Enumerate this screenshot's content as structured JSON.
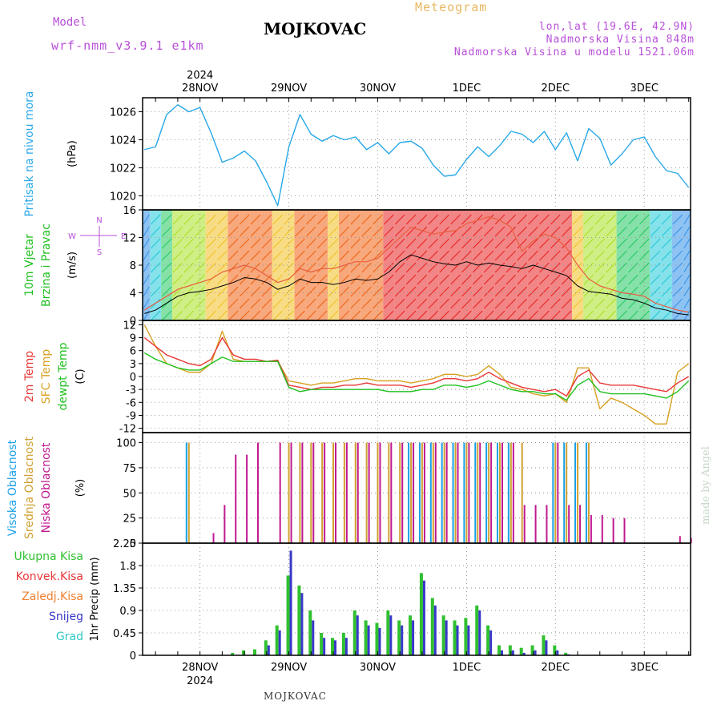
{
  "header": {
    "model_label": "Model",
    "model_name": "wrf-nmm_v3.9.1 e1km",
    "station": "MOJKOVAC",
    "product": "Meteogram",
    "coords": "lon,lat (19.6E, 42.9N)",
    "elevation": "Nadmorska Visina 848m",
    "model_elevation": "Nadmorska Visina u modelu 1521.06m",
    "footer_station": "MOJKOVAC",
    "watermark": "made by Angel"
  },
  "time_axis": {
    "year": "2024",
    "day_labels": [
      "28NOV",
      "29NOV",
      "30NOV",
      "1DEC",
      "2DEC",
      "3DEC"
    ],
    "range_hours": [
      -15.5,
      132.5
    ]
  },
  "colors": {
    "pressure": "#28a8e8",
    "temp2m": "#e83838",
    "sfc": "#d8a020",
    "dewpt": "#20c020",
    "high_cloud": "#18a0e8",
    "mid_cloud": "#d0a030",
    "low_cloud": "#c01890",
    "total_precip": "#30c030",
    "conv_precip": "#e83838",
    "freezing": "#f08030",
    "snow": "#3838c8",
    "graupel": "#30c8c8"
  },
  "chart_data": [
    {
      "type": "line",
      "panel": "pressure",
      "ylabel_main": "Pritisak na nivou mora",
      "unit": "(hPa)",
      "ylim": [
        1019,
        1027
      ],
      "yticks": [
        1020,
        1022,
        1024,
        1026
      ],
      "grid": true,
      "x_hours": [
        -15,
        -12,
        -9,
        -6,
        -3,
        0,
        3,
        6,
        9,
        12,
        15,
        18,
        21,
        24,
        27,
        30,
        33,
        36,
        39,
        42,
        45,
        48,
        51,
        54,
        57,
        60,
        63,
        66,
        69,
        72,
        75,
        78,
        81,
        84,
        87,
        90,
        93,
        96,
        99,
        102,
        105,
        108,
        111,
        114,
        117,
        120,
        123,
        126,
        129,
        132
      ],
      "values": [
        1023.3,
        1023.5,
        1025.8,
        1026.5,
        1026.0,
        1026.3,
        1024.5,
        1022.4,
        1022.7,
        1023.2,
        1022.5,
        1021.0,
        1019.3,
        1023.5,
        1025.8,
        1024.4,
        1023.9,
        1024.3,
        1024.0,
        1024.2,
        1023.3,
        1023.8,
        1023.0,
        1023.8,
        1023.9,
        1023.4,
        1022.2,
        1021.4,
        1021.5,
        1022.6,
        1023.5,
        1022.8,
        1023.6,
        1024.6,
        1024.4,
        1023.8,
        1024.6,
        1023.3,
        1024.5,
        1022.5,
        1024.8,
        1024.1,
        1022.2,
        1023.0,
        1024.0,
        1024.2,
        1022.8,
        1021.8,
        1021.6,
        1020.6
      ]
    },
    {
      "type": "line",
      "panel": "wind",
      "ylabel_main": "10m Vjetar",
      "ylabel_sub": "Brzina i Pravac",
      "unit": "(m/s)",
      "compass": {
        "n": "N",
        "s": "S",
        "w": "W",
        "e": "E"
      },
      "ylim": [
        0,
        16
      ],
      "yticks": [
        0,
        4,
        8,
        12,
        16
      ],
      "grid": true,
      "x_hours": [
        -15,
        -12,
        -9,
        -6,
        -3,
        0,
        3,
        6,
        9,
        12,
        15,
        18,
        21,
        24,
        27,
        30,
        33,
        36,
        39,
        42,
        45,
        48,
        51,
        54,
        57,
        60,
        63,
        66,
        69,
        72,
        75,
        78,
        81,
        84,
        87,
        90,
        93,
        96,
        99,
        102,
        105,
        108,
        111,
        114,
        117,
        120,
        123,
        126,
        129,
        132
      ],
      "series": [
        {
          "role": "speed",
          "values": [
            1.0,
            1.5,
            2.5,
            3.5,
            4.0,
            4.2,
            4.5,
            5.0,
            5.5,
            6.2,
            6.0,
            5.5,
            4.5,
            5.0,
            6.0,
            5.5,
            5.5,
            5.2,
            5.5,
            6.0,
            5.8,
            6.0,
            7.0,
            8.5,
            9.5,
            9.0,
            8.5,
            8.2,
            8.0,
            8.5,
            8.0,
            8.3,
            8.0,
            7.8,
            7.5,
            8.0,
            7.5,
            7.0,
            6.5,
            5.0,
            4.2,
            4.0,
            3.8,
            3.2,
            3.0,
            2.5,
            1.8,
            1.5,
            1.0,
            0.8
          ]
        },
        {
          "role": "gust",
          "values": [
            1.5,
            2.5,
            3.5,
            4.5,
            5.0,
            5.5,
            6.0,
            7.0,
            7.5,
            8.0,
            7.5,
            6.5,
            5.5,
            6.0,
            7.5,
            7.0,
            7.5,
            7.5,
            8.0,
            8.5,
            8.5,
            9.0,
            10.5,
            12.0,
            13.5,
            13.0,
            12.5,
            12.8,
            13.0,
            14.0,
            14.5,
            15.0,
            14.5,
            13.5,
            10.0,
            11.5,
            12.5,
            12.0,
            10.5,
            8.0,
            6.0,
            5.0,
            4.5,
            4.0,
            3.8,
            3.5,
            2.5,
            2.0,
            1.5,
            1.2
          ]
        }
      ]
    },
    {
      "type": "line",
      "panel": "temperature",
      "ylabels": [
        "2m Temp",
        "SFC Temp",
        "dewpt Temp"
      ],
      "unit": "(C)",
      "ylim": [
        -13,
        13
      ],
      "yticks": [
        -12,
        -9,
        -6,
        -3,
        0,
        3,
        6,
        9,
        12
      ],
      "grid": true,
      "x_hours": [
        -15,
        -12,
        -9,
        -6,
        -3,
        0,
        3,
        6,
        9,
        12,
        15,
        18,
        21,
        24,
        27,
        30,
        33,
        36,
        39,
        42,
        45,
        48,
        51,
        54,
        57,
        60,
        63,
        66,
        69,
        72,
        75,
        78,
        81,
        84,
        87,
        90,
        93,
        96,
        99,
        102,
        105,
        108,
        111,
        114,
        117,
        120,
        123,
        126,
        129,
        132
      ],
      "series": [
        {
          "name": "2m Temp",
          "values": [
            9.0,
            7.0,
            5.0,
            4.0,
            3.0,
            2.5,
            4.0,
            9.0,
            5.0,
            4.0,
            4.0,
            3.5,
            3.8,
            -2.0,
            -2.5,
            -3.0,
            -2.5,
            -2.5,
            -2.0,
            -2.0,
            -1.5,
            -2.0,
            -2.0,
            -2.0,
            -2.5,
            -2.0,
            -1.5,
            -0.5,
            -0.5,
            -1.0,
            -0.5,
            1.0,
            -0.5,
            -1.5,
            -2.5,
            -3.0,
            -3.5,
            -3.0,
            -4.5,
            0.0,
            1.5,
            -1.5,
            -2.0,
            -2.0,
            -2.0,
            -2.5,
            -3.0,
            -3.5,
            -1.5,
            0.0
          ]
        },
        {
          "name": "SFC Temp",
          "values": [
            12.0,
            7.0,
            3.0,
            2.0,
            1.0,
            1.0,
            3.0,
            10.5,
            4.0,
            3.5,
            3.5,
            3.5,
            3.5,
            -1.0,
            -1.5,
            -2.0,
            -1.5,
            -1.5,
            -1.0,
            -0.5,
            -0.5,
            -1.0,
            -1.0,
            -1.0,
            -1.5,
            -1.0,
            -0.5,
            0.5,
            0.5,
            0.0,
            0.5,
            2.5,
            0.5,
            -2.5,
            -3.0,
            -4.0,
            -4.5,
            -4.0,
            -6.0,
            2.0,
            2.0,
            -7.5,
            -5.0,
            -6.0,
            -7.5,
            -9.0,
            -11.0,
            -11.0,
            1.0,
            3.0
          ]
        },
        {
          "name": "dewpt Temp",
          "values": [
            5.5,
            4.0,
            3.0,
            2.0,
            1.5,
            1.5,
            3.0,
            4.5,
            3.5,
            3.5,
            3.5,
            3.5,
            3.5,
            -2.5,
            -3.5,
            -3.0,
            -3.0,
            -3.0,
            -3.0,
            -3.0,
            -3.0,
            -3.0,
            -3.5,
            -3.5,
            -3.5,
            -3.0,
            -3.0,
            -2.0,
            -2.0,
            -2.5,
            -2.0,
            -1.0,
            -2.0,
            -3.0,
            -3.5,
            -3.5,
            -4.0,
            -4.0,
            -5.5,
            -2.0,
            -0.5,
            -3.5,
            -4.0,
            -4.0,
            -4.0,
            -4.0,
            -4.5,
            -5.0,
            -3.5,
            -1.0
          ]
        }
      ]
    },
    {
      "type": "bar",
      "panel": "clouds",
      "ylabels": [
        "Visoka Oblacnost",
        "Srednja Oblacnost",
        "Niska Oblacnost"
      ],
      "unit": "(%)",
      "ylim": [
        0,
        110
      ],
      "yticks": [
        0,
        25,
        50,
        75,
        100
      ],
      "grid": true,
      "x_hours": [
        -15,
        -12,
        -9,
        -6,
        -3,
        0,
        3,
        6,
        9,
        12,
        15,
        18,
        21,
        24,
        27,
        30,
        33,
        36,
        39,
        42,
        45,
        48,
        51,
        54,
        57,
        60,
        63,
        66,
        69,
        72,
        75,
        78,
        81,
        84,
        87,
        90,
        93,
        96,
        99,
        102,
        105,
        108,
        111,
        114,
        117,
        120,
        123,
        126,
        129,
        132
      ],
      "series": [
        {
          "name": "Visoka Oblacnost",
          "values": [
            0,
            0,
            0,
            0,
            100,
            0,
            0,
            0,
            0,
            0,
            0,
            0,
            0,
            0,
            0,
            0,
            0,
            0,
            0,
            0,
            0,
            0,
            0,
            0,
            100,
            100,
            100,
            100,
            100,
            100,
            100,
            100,
            100,
            100,
            0,
            0,
            0,
            100,
            100,
            100,
            100,
            0,
            0,
            0,
            0,
            0,
            0,
            0,
            0,
            0
          ]
        },
        {
          "name": "Srednja Oblacnost",
          "values": [
            0,
            0,
            0,
            0,
            100,
            0,
            0,
            0,
            0,
            0,
            0,
            0,
            0,
            100,
            100,
            100,
            100,
            100,
            100,
            100,
            100,
            100,
            100,
            100,
            100,
            100,
            100,
            100,
            100,
            100,
            100,
            100,
            100,
            100,
            100,
            0,
            0,
            100,
            100,
            100,
            100,
            0,
            0,
            0,
            0,
            0,
            0,
            0,
            0,
            0
          ]
        },
        {
          "name": "Niska Oblacnost",
          "values": [
            0,
            0,
            0,
            0,
            0,
            0,
            10,
            38,
            88,
            88,
            100,
            0,
            100,
            100,
            100,
            100,
            100,
            100,
            100,
            100,
            100,
            100,
            100,
            100,
            100,
            100,
            100,
            100,
            100,
            100,
            100,
            100,
            100,
            100,
            38,
            38,
            38,
            100,
            38,
            38,
            28,
            28,
            25,
            25,
            0,
            0,
            0,
            0,
            7,
            5
          ]
        }
      ]
    },
    {
      "type": "bar",
      "panel": "precip",
      "legend": [
        "Ukupna Kisa",
        "Konvek.Kisa",
        "Zaledj.Kisa",
        "Snijeg",
        "Grad"
      ],
      "ylabel": "1hr Precip (mm)",
      "ylim": [
        0,
        2.25
      ],
      "yticks": [
        0,
        0.45,
        0.9,
        1.35,
        1.8,
        2.25
      ],
      "ytick_labels": [
        "0",
        "0.45",
        "0.9",
        "1.35",
        "1.8",
        "2.25"
      ],
      "grid": true,
      "x_hours": [
        -15,
        -12,
        -9,
        -6,
        -3,
        0,
        3,
        6,
        9,
        12,
        15,
        18,
        21,
        24,
        27,
        30,
        33,
        36,
        39,
        42,
        45,
        48,
        51,
        54,
        57,
        60,
        63,
        66,
        69,
        72,
        75,
        78,
        81,
        84,
        87,
        90,
        93,
        96,
        99,
        102,
        105,
        108,
        111,
        114,
        117,
        120,
        123,
        126,
        129,
        132
      ],
      "series": [
        {
          "name": "Ukupna Kisa",
          "values": [
            0,
            0,
            0,
            0,
            0,
            0,
            0,
            0,
            0.05,
            0.1,
            0.12,
            0.3,
            0.6,
            1.6,
            1.4,
            0.9,
            0.45,
            0.35,
            0.45,
            0.9,
            0.7,
            0.65,
            0.9,
            0.7,
            0.8,
            1.65,
            1.15,
            0.8,
            0.7,
            0.75,
            1.0,
            0.6,
            0.2,
            0.2,
            0.15,
            0.2,
            0.4,
            0.2,
            0.05,
            0,
            0,
            0,
            0,
            0,
            0,
            0,
            0,
            0,
            0,
            0
          ]
        },
        {
          "name": "Snijeg",
          "values": [
            0,
            0,
            0,
            0,
            0,
            0,
            0,
            0,
            0,
            0,
            0,
            0.2,
            0.5,
            2.1,
            1.25,
            0.7,
            0.35,
            0.3,
            0.35,
            0.8,
            0.6,
            0.55,
            0.8,
            0.6,
            0.7,
            1.5,
            1.0,
            0.7,
            0.6,
            0.6,
            0.9,
            0.5,
            0.1,
            0.1,
            0.05,
            0.1,
            0.3,
            0.1,
            0.02,
            0,
            0,
            0,
            0,
            0,
            0,
            0,
            0,
            0,
            0,
            0
          ]
        },
        {
          "name": "Konvek.Kisa",
          "values": [
            0,
            0,
            0,
            0,
            0,
            0,
            0,
            0,
            0,
            0,
            0,
            0,
            0,
            0,
            0,
            0,
            0,
            0,
            0,
            0,
            0,
            0,
            0,
            0,
            0,
            0,
            0,
            0,
            0,
            0,
            0,
            0,
            0,
            0,
            0,
            0,
            0,
            0,
            0,
            0,
            0,
            0,
            0,
            0,
            0,
            0,
            0,
            0,
            0,
            0
          ]
        }
      ]
    }
  ]
}
